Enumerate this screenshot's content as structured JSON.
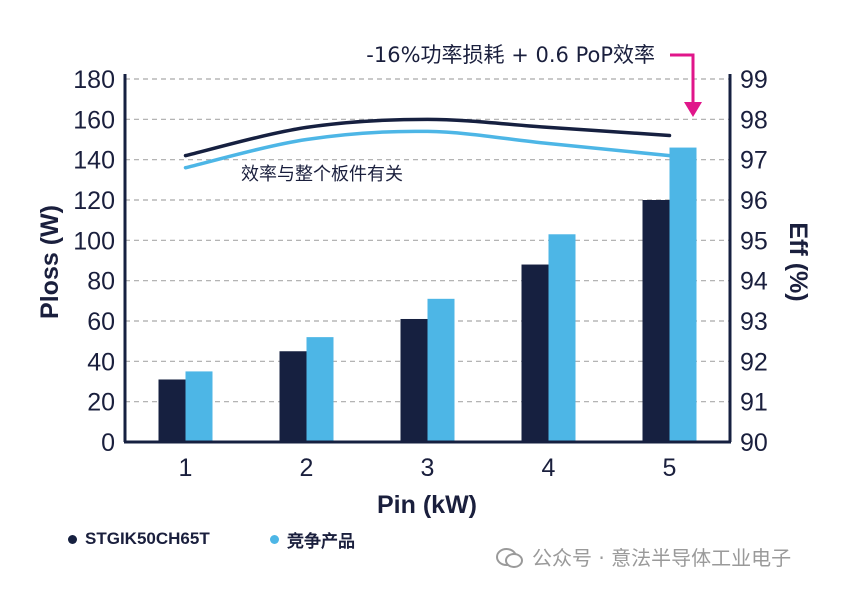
{
  "chart_data": {
    "type": "bar",
    "categories": [
      "1",
      "2",
      "3",
      "4",
      "5"
    ],
    "xlabel": "Pin (kW)",
    "ylabel": "Ploss (W)",
    "y2label": "Eff (%)",
    "ylim": [
      0,
      180
    ],
    "yticks": [
      0,
      20,
      40,
      60,
      80,
      100,
      120,
      140,
      160,
      180
    ],
    "y2lim": [
      90,
      99
    ],
    "y2ticks": [
      90,
      91,
      92,
      93,
      94,
      95,
      96,
      97,
      98,
      99
    ],
    "grid": "horizontal dashed",
    "series": [
      {
        "name": "STGIK50CH65T",
        "type": "bar",
        "color": "#162040",
        "values": [
          31,
          45,
          61,
          88,
          120
        ]
      },
      {
        "name": "竞争产品",
        "type": "bar",
        "color": "#4db6e6",
        "values": [
          35,
          52,
          71,
          103,
          146
        ]
      },
      {
        "type": "line",
        "axis": "right",
        "color": "#162040",
        "values": [
          97.1,
          97.8,
          98.0,
          97.8,
          97.6
        ]
      },
      {
        "type": "line",
        "axis": "right",
        "color": "#4db6e6",
        "values": [
          96.8,
          97.5,
          97.7,
          97.4,
          97.1
        ]
      }
    ],
    "annotations": [
      {
        "text": "-16%功率损耗 + 0.6 PoP效率",
        "color": "#e0168a"
      },
      {
        "text": "效率与整个板件有关"
      }
    ]
  },
  "watermark": {
    "text": "公众号 · 意法半导体工业电子",
    "icon": "wechat-icon"
  }
}
